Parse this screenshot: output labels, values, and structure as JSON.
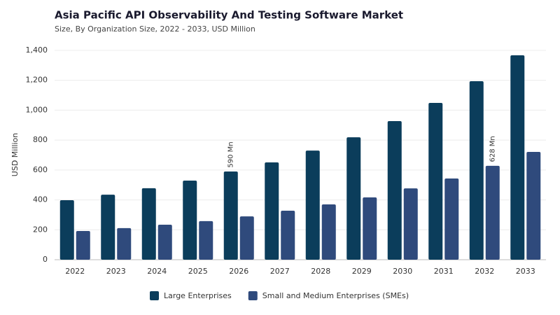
{
  "chart_data": {
    "type": "bar",
    "title": "Asia Pacific API Observability And Testing Software Market",
    "subtitle": "Size, By Organization Size, 2022 - 2033, USD Million",
    "y_label": "USD Million",
    "categories": [
      "2022",
      "2023",
      "2024",
      "2025",
      "2026",
      "2027",
      "2028",
      "2029",
      "2030",
      "2031",
      "2032",
      "2033"
    ],
    "series": [
      {
        "name": "Large Enterprises",
        "color": "#0b3d5b",
        "values": [
          398,
          435,
          478,
          529,
          590,
          651,
          730,
          819,
          927,
          1049,
          1194,
          1367
        ],
        "value_labels": [
          null,
          null,
          null,
          null,
          "590 Mn",
          null,
          null,
          null,
          null,
          null,
          null,
          null
        ]
      },
      {
        "name": "Small and Medium Enterprises (SMEs)",
        "color": "#2f4a7c",
        "values": [
          192,
          211,
          234,
          258,
          290,
          328,
          370,
          417,
          477,
          543,
          628,
          721
        ],
        "value_labels": [
          null,
          null,
          null,
          null,
          null,
          null,
          null,
          null,
          null,
          null,
          "628 Mn",
          null
        ]
      }
    ],
    "ylim": [
      0,
      1400
    ],
    "yticks": [
      0,
      200,
      400,
      600,
      800,
      {
        "value": 1000,
        "label": "1,000"
      },
      {
        "value": 1200,
        "label": "1,200"
      },
      {
        "value": 1400,
        "label": "1,400"
      }
    ],
    "grid": true,
    "legend": "bottom"
  }
}
